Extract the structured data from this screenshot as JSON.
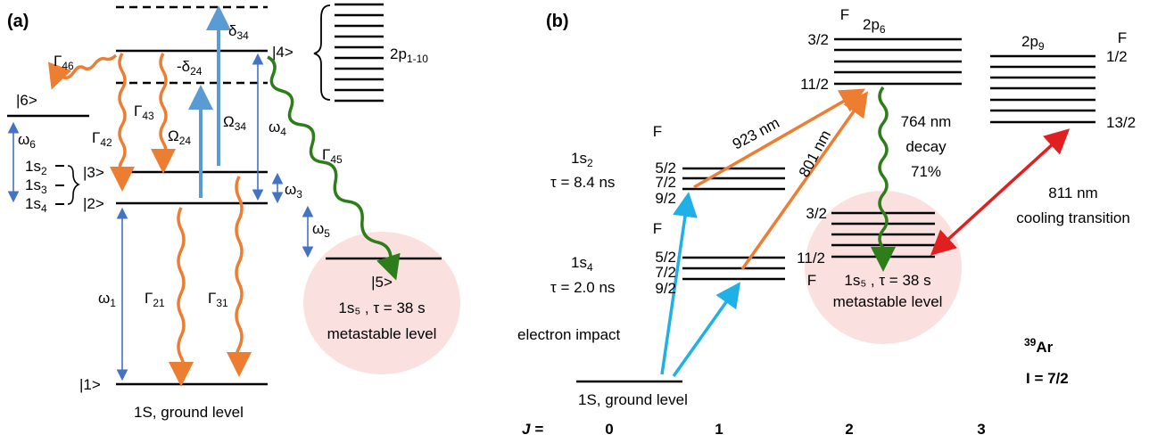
{
  "panel_a": {
    "label": "(a)",
    "states": {
      "s1": "|1>",
      "s2": "|2>",
      "s3": "|3>",
      "s4": "|4>",
      "s6": "|6>",
      "s5": "|5>",
      "s5_detail": "1s₅ , τ = 38 s",
      "s5_meta": "metastable level",
      "ground": "1S, ground level",
      "manifold_2p": "2p",
      "manifold_2p_sub": "1-10",
      "ns2": "1s",
      "ns2_sub": "2",
      "ns3": "1s",
      "ns3_sub": "3",
      "ns4": "1s",
      "ns4_sub": "4"
    },
    "symbols": {
      "G46": "Γ",
      "G46_sub": "46",
      "G42": "Γ",
      "G42_sub": "42",
      "G43": "Γ",
      "G43_sub": "43",
      "O24": "Ω",
      "O24_sub": "24",
      "O34": "Ω",
      "O34_sub": "34",
      "d34": "δ",
      "d34_sub": "34",
      "d24": "-δ",
      "d24_sub": "24",
      "w4": "ω",
      "w4_sub": "4",
      "w6": "ω",
      "w6_sub": "6",
      "w3": "ω",
      "w3_sub": "3",
      "w5": "ω",
      "w5_sub": "5",
      "w1": "ω",
      "w1_sub": "1",
      "G21": "Γ",
      "G21_sub": "21",
      "G31": "Γ",
      "G31_sub": "31",
      "G45": "Γ",
      "G45_sub": "45"
    }
  },
  "panel_b": {
    "label": "(b)",
    "F_header": "F",
    "p6": "2p",
    "p6_sub": "6",
    "p9": "2p",
    "p9_sub": "9",
    "p6_F_top": "3/2",
    "p6_F_bottom": "11/2",
    "p9_F_top": "1/2",
    "p9_F_bottom": "13/2",
    "s2_name": "1s",
    "s2_sub": "2",
    "s2_tau": "τ = 8.4 ns",
    "s2_F": [
      "5/2",
      "7/2",
      "9/2"
    ],
    "s4_name": "1s",
    "s4_sub": "4",
    "s4_tau": "τ = 2.0 ns",
    "s4_F": [
      "5/2",
      "7/2",
      "9/2"
    ],
    "s5_F_top": "3/2",
    "s5_F_bottom": "11/2",
    "s5_label": "1s₅ , τ = 38 s",
    "s5_meta": "metastable level",
    "t923": "923 nm",
    "t801": "801 nm",
    "t764": "764 nm",
    "t764_b": "decay",
    "t764_c": "71%",
    "t811": "811 nm",
    "t811_b": "cooling transition",
    "electron_impact": "electron impact",
    "ground": "1S, ground level",
    "isotope_mass": "39",
    "isotope": "Ar",
    "spin": "I = 7/2",
    "J_label": "J =",
    "J_values": [
      "0",
      "1",
      "2",
      "3"
    ]
  },
  "colors": {
    "decay_orange": "#ED7D31",
    "laser_blue": "#5B9BD5",
    "decay_green": "#2E7D1B",
    "impact_cyan": "#1FB0E6",
    "cooling_red": "#E02020",
    "metastable_pink": "#FBE0E0"
  }
}
